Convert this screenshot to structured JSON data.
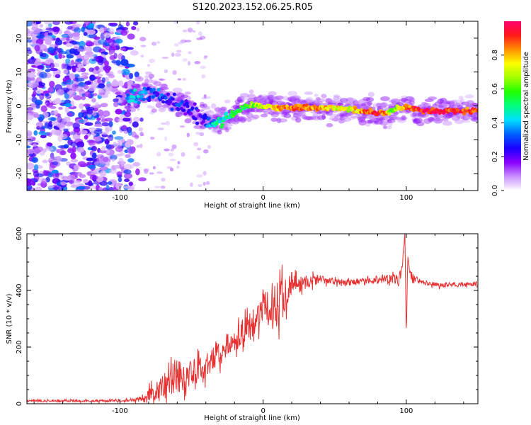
{
  "title": "S120.2023.152.06.25.R05",
  "chart_data": [
    {
      "type": "heatmap",
      "title": "S120.2023.152.06.25.R05",
      "xlabel": "Height of straight line (km)",
      "ylabel": "Frequency (Hz)",
      "xlim": [
        -165,
        150
      ],
      "ylim": [
        -25,
        25
      ],
      "xticks": [
        -100,
        0,
        100
      ],
      "yticks": [
        -20,
        -10,
        0,
        10,
        20
      ],
      "colorbar": {
        "label": "Normalized spectral amplitude",
        "range": [
          0,
          1
        ],
        "ticks": [
          0.0,
          0.2,
          0.4,
          0.6,
          0.8
        ],
        "colors": [
          "#ffffff",
          "#c890ff",
          "#8a00ff",
          "#1a00ff",
          "#0060ff",
          "#00e0ff",
          "#00ff80",
          "#20ff00",
          "#a0ff00",
          "#ffff00",
          "#ff9000",
          "#ff1a1a",
          "#ff0070"
        ]
      },
      "signal_track": {
        "description_free_points": true,
        "x": [
          -95,
          -90,
          -85,
          -80,
          -75,
          -70,
          -65,
          -60,
          -55,
          -50,
          -45,
          -40,
          -35,
          -30,
          -25,
          -20,
          -15,
          -10,
          -5,
          0,
          10,
          20,
          30,
          40,
          50,
          60,
          70,
          78,
          85,
          90,
          95,
          100,
          110,
          120,
          130,
          140,
          150
        ],
        "frequency": [
          2.5,
          3.0,
          4.0,
          4.5,
          3.5,
          2.5,
          1.5,
          0.5,
          -0.5,
          -1.5,
          -3.0,
          -4.0,
          -5.0,
          -4.0,
          -3.0,
          -2.0,
          -1.0,
          0.0,
          0.5,
          0.0,
          -0.5,
          -0.5,
          -0.5,
          -0.5,
          -0.5,
          -1.0,
          -1.5,
          -2.0,
          -2.0,
          -1.5,
          -0.5,
          -0.5,
          -1.5,
          -1.5,
          -1.5,
          -1.5,
          -1.5
        ],
        "amplitude": [
          0.35,
          0.4,
          0.35,
          0.3,
          0.3,
          0.3,
          0.25,
          0.25,
          0.25,
          0.25,
          0.2,
          0.3,
          0.4,
          0.45,
          0.5,
          0.55,
          0.55,
          0.6,
          0.65,
          0.7,
          0.8,
          0.85,
          0.85,
          0.8,
          0.75,
          0.7,
          0.85,
          0.9,
          0.85,
          0.6,
          0.7,
          0.85,
          0.95,
          0.95,
          0.9,
          0.9,
          0.85
        ]
      }
    },
    {
      "type": "line",
      "xlabel": "Height of straight line (km)",
      "ylabel": "SNR (10 * v/v)",
      "xlim": [
        -165,
        150
      ],
      "ylim": [
        0,
        600
      ],
      "xticks": [
        -100,
        0,
        100
      ],
      "yticks": [
        0,
        200,
        400,
        600
      ],
      "series": [
        {
          "name": "SNR",
          "color": "#e83030",
          "x": [
            -165,
            -140,
            -120,
            -100,
            -90,
            -82,
            -78,
            -72,
            -65,
            -60,
            -55,
            -50,
            -45,
            -40,
            -35,
            -30,
            -25,
            -20,
            -15,
            -10,
            -5,
            0,
            5,
            10,
            15,
            20,
            25,
            30,
            40,
            50,
            60,
            70,
            80,
            90,
            95,
            97,
            99,
            100,
            101,
            103,
            110,
            120,
            130,
            140,
            150
          ],
          "values": [
            10,
            10,
            10,
            10,
            12,
            20,
            35,
            50,
            80,
            100,
            95,
            90,
            110,
            140,
            160,
            180,
            210,
            220,
            250,
            270,
            300,
            330,
            340,
            360,
            390,
            430,
            420,
            430,
            440,
            430,
            430,
            430,
            440,
            440,
            440,
            480,
            600,
            230,
            520,
            450,
            430,
            420,
            420,
            420,
            425
          ],
          "noise_amplitude": [
            4,
            4,
            4,
            4,
            6,
            20,
            30,
            40,
            60,
            70,
            70,
            60,
            60,
            55,
            50,
            45,
            40,
            40,
            40,
            45,
            50,
            60,
            80,
            90,
            70,
            40,
            30,
            25,
            15,
            10,
            10,
            12,
            15,
            15,
            20,
            20,
            0,
            0,
            0,
            20,
            10,
            8,
            8,
            8,
            8
          ]
        }
      ]
    }
  ]
}
